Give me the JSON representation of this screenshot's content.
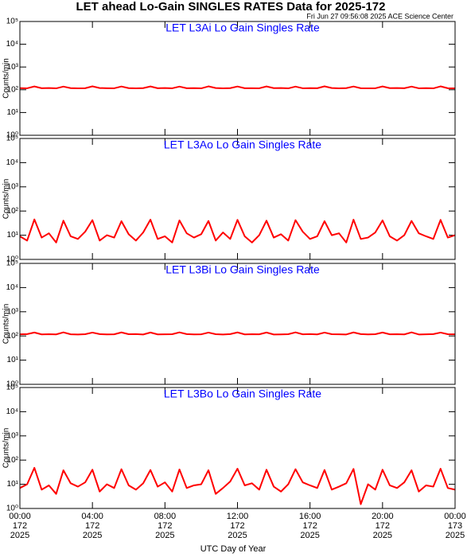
{
  "title": "LET ahead Lo-Gain SINGLES RATES Data for 2025-172",
  "timestamp": "Fri Jun 27 09:56:08 2025 ACE Science Center",
  "x_axis": {
    "label": "UTC Day of Year",
    "xlim": [
      0,
      24
    ],
    "xticks": [
      {
        "value": 0,
        "label": "00:00"
      },
      {
        "value": 4,
        "label": "04:00"
      },
      {
        "value": 8,
        "label": "08:00"
      },
      {
        "value": 12,
        "label": "12:00"
      },
      {
        "value": 16,
        "label": "16:00"
      },
      {
        "value": 20,
        "label": "20:00"
      },
      {
        "value": 24,
        "label": "00:00"
      }
    ],
    "day_labels": [
      "172",
      "172",
      "172",
      "172",
      "172",
      "172",
      "173"
    ],
    "year_labels": [
      "2025",
      "2025",
      "2025",
      "2025",
      "2025",
      "2025",
      "2025"
    ]
  },
  "chart_data": [
    {
      "type": "line",
      "title": "LET L3Ai Lo Gain Singles Rate",
      "ylabel": "Counts/min",
      "log_scale": true,
      "color": "#ff0000",
      "ylim": [
        1,
        100000
      ],
      "yticks": [
        {
          "value": 1,
          "label": "10⁰"
        },
        {
          "value": 10,
          "label": "10¹"
        },
        {
          "value": 100,
          "label": "10²"
        },
        {
          "value": 1000,
          "label": "10³"
        },
        {
          "value": 10000,
          "label": "10⁴"
        },
        {
          "value": 100000,
          "label": "10⁵"
        }
      ],
      "x": [
        0,
        0.4,
        0.8,
        1.2,
        1.6,
        2,
        2.4,
        2.8,
        3.2,
        3.6,
        4,
        4.4,
        4.8,
        5.2,
        5.6,
        6,
        6.4,
        6.8,
        7.2,
        7.6,
        8,
        8.4,
        8.8,
        9.2,
        9.6,
        10,
        10.4,
        10.8,
        11.2,
        11.6,
        12,
        12.4,
        12.8,
        13.2,
        13.6,
        14,
        14.4,
        14.8,
        15.2,
        15.6,
        16,
        16.4,
        16.8,
        17.2,
        17.6,
        18,
        18.4,
        18.8,
        19.2,
        19.6,
        20,
        20.4,
        20.8,
        21.2,
        21.6,
        22,
        22.4,
        22.8,
        23.2,
        23.6,
        24
      ],
      "values": [
        118,
        116,
        140,
        117,
        119,
        115,
        138,
        118,
        116,
        117,
        141,
        119,
        117,
        116,
        139,
        118,
        115,
        118,
        140,
        117,
        119,
        116,
        138,
        117,
        118,
        115,
        141,
        119,
        116,
        118,
        139,
        117,
        117,
        116,
        140,
        118,
        119,
        115,
        138,
        116,
        118,
        117,
        141,
        119,
        116,
        118,
        139,
        117,
        115,
        116,
        140,
        118,
        119,
        117,
        138,
        116,
        118,
        115,
        141,
        117,
        116
      ]
    },
    {
      "type": "line",
      "title": "LET L3Ao Lo Gain Singles Rate",
      "ylabel": "Counts/min",
      "log_scale": true,
      "color": "#ff0000",
      "ylim": [
        1,
        100000
      ],
      "yticks": [
        {
          "value": 1,
          "label": "10⁰"
        },
        {
          "value": 10,
          "label": "10¹"
        },
        {
          "value": 100,
          "label": "10²"
        },
        {
          "value": 1000,
          "label": "10³"
        },
        {
          "value": 10000,
          "label": "10⁴"
        },
        {
          "value": 100000,
          "label": "10⁵"
        }
      ],
      "x": [
        0,
        0.4,
        0.8,
        1.2,
        1.6,
        2,
        2.4,
        2.8,
        3.2,
        3.6,
        4,
        4.4,
        4.8,
        5.2,
        5.6,
        6,
        6.4,
        6.8,
        7.2,
        7.6,
        8,
        8.4,
        8.8,
        9.2,
        9.6,
        10,
        10.4,
        10.8,
        11.2,
        11.6,
        12,
        12.4,
        12.8,
        13.2,
        13.6,
        14,
        14.4,
        14.8,
        15.2,
        15.6,
        16,
        16.4,
        16.8,
        17.2,
        17.6,
        18,
        18.4,
        18.8,
        19.2,
        19.6,
        20,
        20.4,
        20.8,
        21.2,
        21.6,
        22,
        22.4,
        22.8,
        23.2,
        23.6,
        24
      ],
      "values": [
        9,
        6,
        45,
        8,
        12,
        5,
        40,
        9,
        7,
        14,
        42,
        6,
        10,
        8,
        38,
        11,
        6,
        13,
        44,
        7,
        9,
        5,
        41,
        12,
        8,
        11,
        39,
        6,
        13,
        7,
        43,
        9,
        5,
        10,
        40,
        8,
        11,
        6,
        42,
        14,
        7,
        9,
        38,
        10,
        12,
        5,
        44,
        7,
        8,
        13,
        41,
        9,
        6,
        10,
        39,
        12,
        9,
        7,
        43,
        8,
        10
      ]
    },
    {
      "type": "line",
      "title": "LET L3Bi Lo Gain Singles Rate",
      "ylabel": "Counts/min",
      "log_scale": true,
      "color": "#ff0000",
      "ylim": [
        1,
        100000
      ],
      "yticks": [
        {
          "value": 1,
          "label": "10⁰"
        },
        {
          "value": 10,
          "label": "10¹"
        },
        {
          "value": 100,
          "label": "10²"
        },
        {
          "value": 1000,
          "label": "10³"
        },
        {
          "value": 10000,
          "label": "10⁴"
        },
        {
          "value": 100000,
          "label": "10⁵"
        }
      ],
      "x": [
        0,
        0.4,
        0.8,
        1.2,
        1.6,
        2,
        2.4,
        2.8,
        3.2,
        3.6,
        4,
        4.4,
        4.8,
        5.2,
        5.6,
        6,
        6.4,
        6.8,
        7.2,
        7.6,
        8,
        8.4,
        8.8,
        9.2,
        9.6,
        10,
        10.4,
        10.8,
        11.2,
        11.6,
        12,
        12.4,
        12.8,
        13.2,
        13.6,
        14,
        14.4,
        14.8,
        15.2,
        15.6,
        16,
        16.4,
        16.8,
        17.2,
        17.6,
        18,
        18.4,
        18.8,
        19.2,
        19.6,
        20,
        20.4,
        20.8,
        21.2,
        21.6,
        22,
        22.4,
        22.8,
        23.2,
        23.6,
        24
      ],
      "values": [
        117,
        119,
        139,
        116,
        118,
        116,
        141,
        117,
        115,
        118,
        138,
        119,
        116,
        117,
        140,
        118,
        119,
        115,
        139,
        116,
        117,
        118,
        141,
        119,
        116,
        117,
        138,
        118,
        115,
        119,
        140,
        116,
        118,
        117,
        139,
        115,
        116,
        118,
        141,
        117,
        119,
        116,
        138,
        118,
        117,
        115,
        140,
        119,
        116,
        118,
        139,
        117,
        118,
        116,
        141,
        115,
        117,
        119,
        138,
        118,
        117
      ]
    },
    {
      "type": "line",
      "title": "LET L3Bo Lo Gain Singles Rate",
      "ylabel": "Counts/min",
      "log_scale": true,
      "color": "#ff0000",
      "ylim": [
        1,
        100000
      ],
      "yticks": [
        {
          "value": 1,
          "label": "10⁰"
        },
        {
          "value": 10,
          "label": "10¹"
        },
        {
          "value": 100,
          "label": "10²"
        },
        {
          "value": 1000,
          "label": "10³"
        },
        {
          "value": 10000,
          "label": "10⁴"
        },
        {
          "value": 100000,
          "label": "10⁵"
        }
      ],
      "x": [
        0,
        0.4,
        0.8,
        1.2,
        1.6,
        2,
        2.4,
        2.8,
        3.2,
        3.6,
        4,
        4.4,
        4.8,
        5.2,
        5.6,
        6,
        6.4,
        6.8,
        7.2,
        7.6,
        8,
        8.4,
        8.8,
        9.2,
        9.6,
        10,
        10.4,
        10.8,
        11.2,
        11.6,
        12,
        12.4,
        12.8,
        13.2,
        13.6,
        14,
        14.4,
        14.8,
        15.2,
        15.6,
        16,
        16.4,
        16.8,
        17.2,
        17.6,
        18,
        18.4,
        18.8,
        19.2,
        19.6,
        20,
        20.4,
        20.8,
        21.2,
        21.6,
        22,
        22.4,
        22.8,
        23.2,
        23.6,
        24
      ],
      "values": [
        7,
        10,
        48,
        6,
        9,
        4,
        38,
        11,
        8,
        12,
        40,
        5,
        10,
        7,
        42,
        9,
        6,
        11,
        39,
        8,
        12,
        5,
        41,
        7,
        9,
        10,
        38,
        4,
        7,
        13,
        44,
        9,
        11,
        6,
        40,
        8,
        5,
        10,
        42,
        12,
        9,
        7,
        39,
        6,
        8,
        11,
        43,
        1.5,
        10,
        6,
        40,
        9,
        7,
        12,
        38,
        5,
        9,
        8,
        44,
        7,
        6
      ]
    }
  ]
}
